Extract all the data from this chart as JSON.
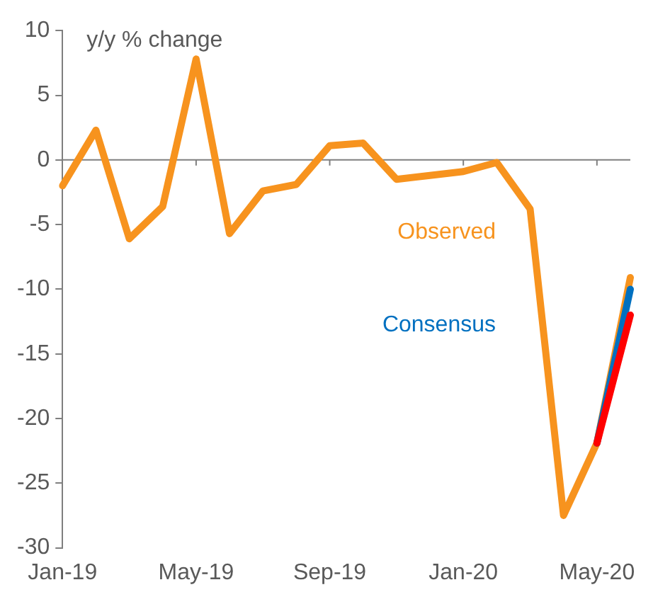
{
  "chart_data": {
    "type": "line",
    "ylabel": "y/y % change",
    "categories": [
      "Jan-19",
      null,
      null,
      null,
      "May-19",
      null,
      null,
      null,
      "Sep-19",
      null,
      null,
      null,
      "Jan-20",
      null,
      null,
      null,
      "May-20",
      null
    ],
    "series": [
      {
        "name": "Observed",
        "color": "#f7931e",
        "values": [
          -2.0,
          2.3,
          -6.1,
          -3.6,
          7.8,
          -5.7,
          -2.4,
          -1.9,
          1.1,
          1.3,
          -1.5,
          -1.2,
          -0.9,
          -0.2,
          -3.8,
          -27.5,
          -21.9,
          -9.1
        ]
      },
      {
        "name": "Consensus",
        "color": "#0070c0",
        "values": [
          null,
          null,
          null,
          null,
          null,
          null,
          null,
          null,
          null,
          null,
          null,
          null,
          null,
          null,
          null,
          null,
          -21.9,
          -10.0
        ]
      },
      {
        "color": "#ff0000",
        "values": [
          null,
          null,
          null,
          null,
          null,
          null,
          null,
          null,
          null,
          null,
          null,
          null,
          null,
          null,
          null,
          null,
          -21.9,
          -12.0
        ]
      }
    ],
    "ylim": [
      -30,
      10
    ],
    "yticks": [
      -30,
      -25,
      -20,
      -15,
      -10,
      -5,
      0,
      5,
      10
    ],
    "ref_lines": [
      {
        "axis": "y",
        "value": 0,
        "color": "#7f7f7f"
      }
    ],
    "grid": false,
    "legend": false,
    "marker": "none",
    "line_style": "solid"
  }
}
